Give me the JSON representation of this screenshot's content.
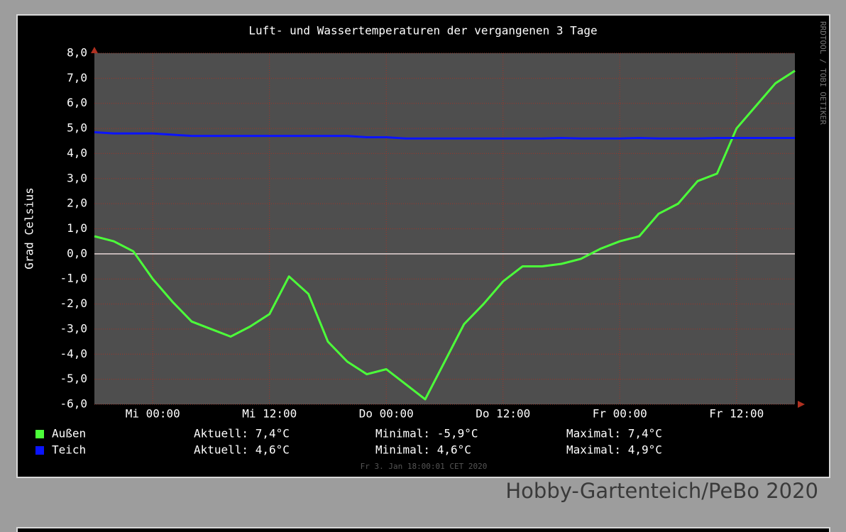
{
  "chart_data": {
    "type": "line",
    "title": "Luft- und Wassertemperaturen der vergangenen 3 Tage",
    "y_label": "Grad Celsius",
    "watermark": "RRDTOOL / TOBI OETIKER",
    "timestamp": "Fr 3. Jan 18:00:01 CET 2020",
    "x": [
      -6,
      -4,
      -2,
      0,
      2,
      4,
      6,
      8,
      10,
      12,
      14,
      16,
      18,
      20,
      22,
      24,
      26,
      28,
      30,
      32,
      34,
      36,
      38,
      40,
      42,
      44,
      46,
      48,
      50,
      52,
      54,
      56,
      58,
      60,
      62,
      64,
      66
    ],
    "xlim": [
      -6,
      66
    ],
    "xticks": [
      {
        "value": 0,
        "label": "Mi 00:00"
      },
      {
        "value": 12,
        "label": "Mi 12:00"
      },
      {
        "value": 24,
        "label": "Do 00:00"
      },
      {
        "value": 36,
        "label": "Do 12:00"
      },
      {
        "value": 48,
        "label": "Fr 00:00"
      },
      {
        "value": 60,
        "label": "Fr 12:00"
      }
    ],
    "ylim": [
      -6,
      8
    ],
    "yticks": [
      {
        "value": 8,
        "label": "8,0"
      },
      {
        "value": 7,
        "label": "7,0"
      },
      {
        "value": 6,
        "label": "6,0"
      },
      {
        "value": 5,
        "label": "5,0"
      },
      {
        "value": 4,
        "label": "4,0"
      },
      {
        "value": 3,
        "label": "3,0"
      },
      {
        "value": 2,
        "label": "2,0"
      },
      {
        "value": 1,
        "label": "1,0"
      },
      {
        "value": 0,
        "label": "0,0"
      },
      {
        "value": -1,
        "label": "-1,0"
      },
      {
        "value": -2,
        "label": "-2,0"
      },
      {
        "value": -3,
        "label": "-3,0"
      },
      {
        "value": -4,
        "label": "-4,0"
      },
      {
        "value": -5,
        "label": "-5,0"
      },
      {
        "value": -6,
        "label": "-6,0"
      }
    ],
    "grid": true,
    "series": [
      {
        "name": "Außen",
        "color": "#4cff3a",
        "stats": [
          "Aktuell: 7,4°C",
          "Minimal: -5,9°C",
          "Maximal: 7,4°C"
        ],
        "values": [
          0.7,
          0.5,
          0.1,
          -1.0,
          -1.9,
          -2.7,
          -3.0,
          -3.3,
          -2.9,
          -2.4,
          -0.9,
          -1.6,
          -3.5,
          -4.3,
          -4.8,
          -4.6,
          -5.2,
          -5.8,
          -4.3,
          -2.8,
          -2.0,
          -1.1,
          -0.5,
          -0.5,
          -0.4,
          -0.2,
          0.2,
          0.5,
          0.7,
          1.6,
          2.0,
          2.9,
          3.2,
          5.0,
          5.9,
          6.8,
          7.3
        ]
      },
      {
        "name": "Teich",
        "color": "#0a14ff",
        "stats": [
          "Aktuell: 4,6°C",
          "Minimal: 4,6°C",
          "Maximal: 4,9°C"
        ],
        "values": [
          4.85,
          4.8,
          4.8,
          4.8,
          4.75,
          4.7,
          4.7,
          4.7,
          4.7,
          4.7,
          4.7,
          4.7,
          4.7,
          4.7,
          4.65,
          4.65,
          4.6,
          4.6,
          4.6,
          4.6,
          4.6,
          4.6,
          4.6,
          4.6,
          4.62,
          4.6,
          4.6,
          4.6,
          4.62,
          4.6,
          4.6,
          4.6,
          4.62,
          4.62,
          4.62,
          4.62,
          4.62
        ]
      }
    ]
  },
  "caption": "Hobby-Gartenteich/PeBo 2020"
}
